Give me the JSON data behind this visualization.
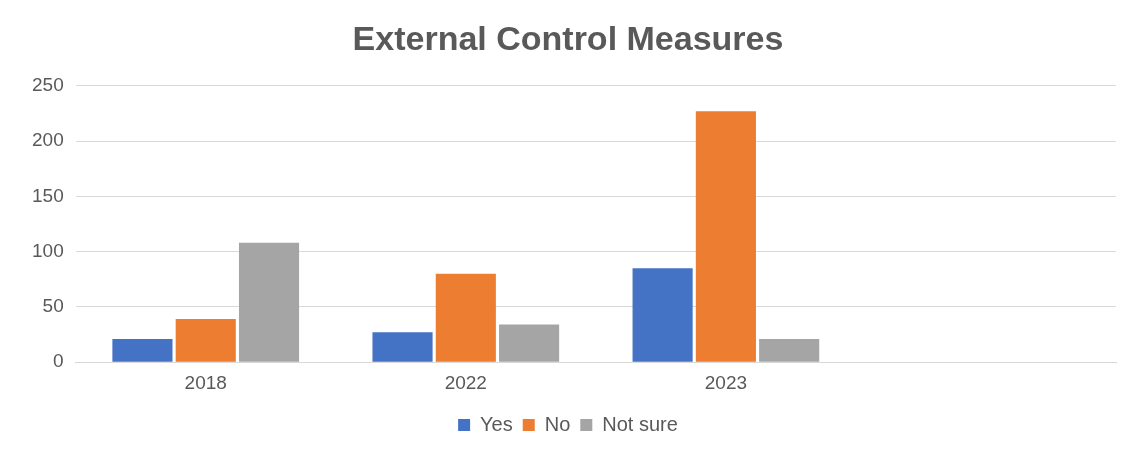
{
  "chart_data": {
    "type": "bar",
    "title": "External Control Measures",
    "categories": [
      "2018",
      "2022",
      "2023",
      null
    ],
    "series": [
      {
        "name": "Yes",
        "color": "#4472c4",
        "values": [
          21,
          27,
          85,
          null
        ]
      },
      {
        "name": "No",
        "color": "#ed7d31",
        "values": [
          39,
          80,
          227,
          null
        ]
      },
      {
        "name": "Not sure",
        "color": "#a5a5a5",
        "values": [
          108,
          34,
          21,
          null
        ]
      }
    ],
    "ylim": [
      0,
      250
    ],
    "yticks": [
      0,
      50,
      100,
      150,
      200,
      250
    ],
    "grid": "y",
    "legend": "bottom"
  }
}
